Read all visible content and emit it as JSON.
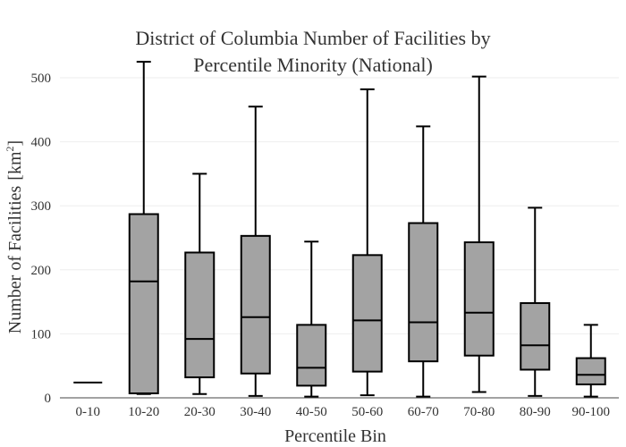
{
  "chart_data": {
    "type": "box",
    "title_lines": [
      "District of Columbia Number of Facilities by",
      "Percentile Minority (National)"
    ],
    "xlabel": "Percentile Bin",
    "ylabel": "Number of Facilities",
    "ylabel_unit": "[km",
    "ylabel_unit_sup": "2",
    "ylabel_unit_close": "]",
    "ylim": [
      0,
      530
    ],
    "yticks": [
      0,
      100,
      200,
      300,
      400,
      500
    ],
    "grid": true,
    "box_color": "#a3a3a3",
    "line_color": "#000000",
    "categories": [
      "0-10",
      "10-20",
      "20-30",
      "30-40",
      "40-50",
      "50-60",
      "60-70",
      "70-80",
      "80-90",
      "90-100"
    ],
    "boxes": [
      {
        "min": 24,
        "q1": 24,
        "median": 24,
        "q3": 24,
        "max": 24
      },
      {
        "min": 6,
        "q1": 7,
        "median": 182,
        "q3": 287,
        "max": 525
      },
      {
        "min": 6,
        "q1": 32,
        "median": 92,
        "q3": 227,
        "max": 350
      },
      {
        "min": 3,
        "q1": 38,
        "median": 126,
        "q3": 253,
        "max": 455
      },
      {
        "min": 2,
        "q1": 19,
        "median": 47,
        "q3": 114,
        "max": 244
      },
      {
        "min": 4,
        "q1": 41,
        "median": 121,
        "q3": 223,
        "max": 482
      },
      {
        "min": 2,
        "q1": 57,
        "median": 118,
        "q3": 273,
        "max": 424
      },
      {
        "min": 9,
        "q1": 66,
        "median": 133,
        "q3": 243,
        "max": 502
      },
      {
        "min": 3,
        "q1": 44,
        "median": 82,
        "q3": 148,
        "max": 297
      },
      {
        "min": 2,
        "q1": 21,
        "median": 36,
        "q3": 62,
        "max": 114
      }
    ]
  }
}
